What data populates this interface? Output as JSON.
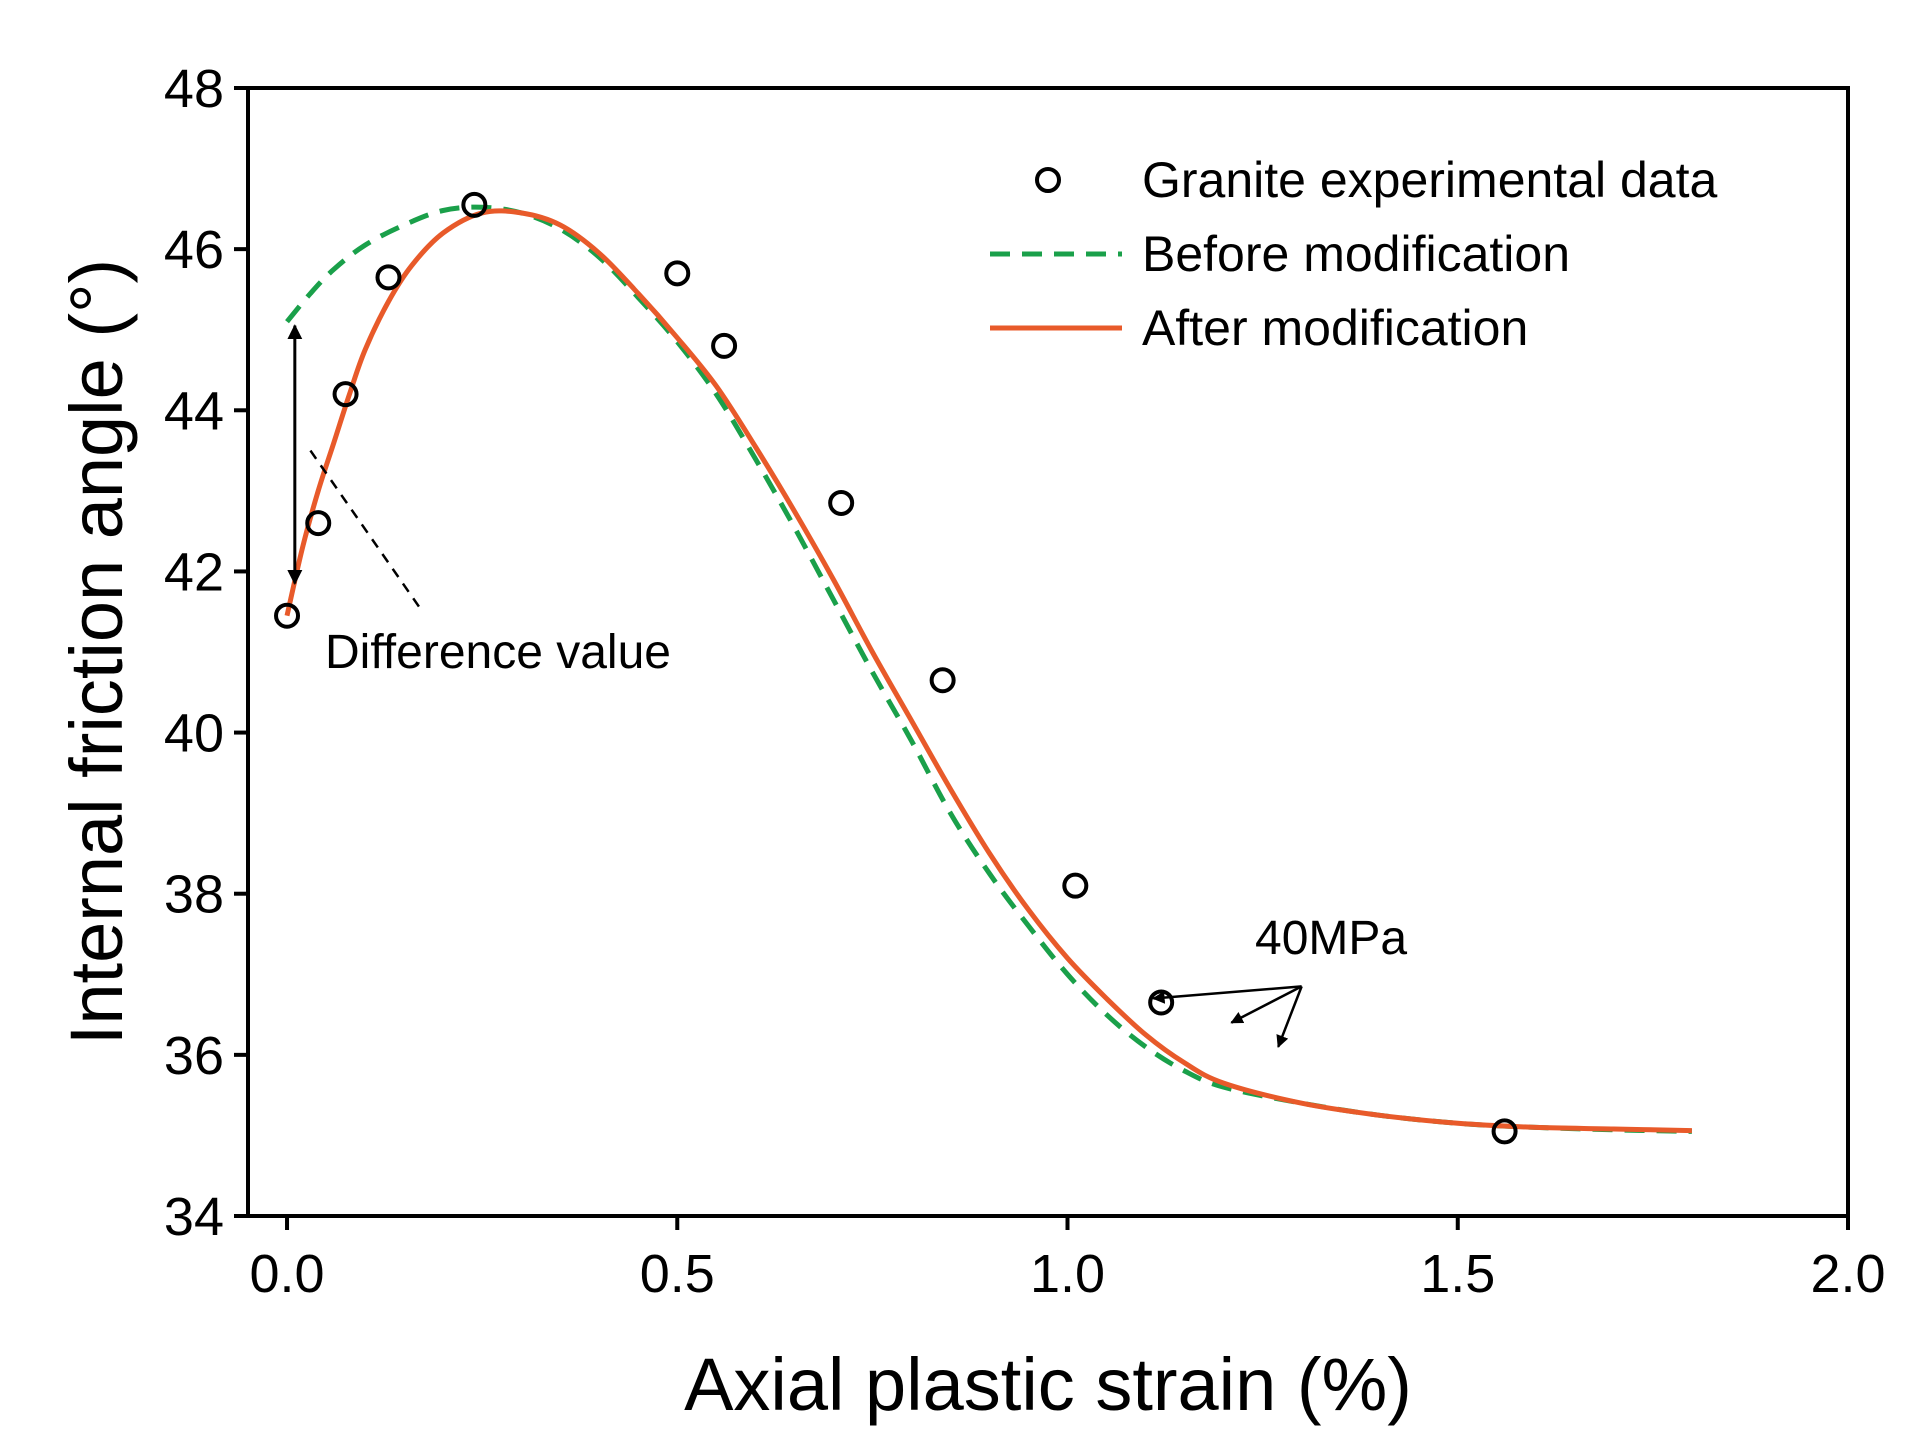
{
  "chart_data": {
    "type": "scatter",
    "title": "",
    "xlabel": "Axial plastic strain (%)",
    "ylabel": "Internal friction angle (°)",
    "xlim": [
      -0.05,
      2.0
    ],
    "ylim": [
      34,
      48
    ],
    "xticks": [
      0.0,
      0.5,
      1.0,
      1.5,
      2.0
    ],
    "xtick_labels": [
      "0.0",
      "0.5",
      "1.0",
      "1.5",
      "2.0"
    ],
    "yticks": [
      34,
      36,
      38,
      40,
      42,
      44,
      46,
      48
    ],
    "ytick_labels": [
      "34",
      "36",
      "38",
      "40",
      "42",
      "44",
      "46",
      "48"
    ],
    "grid": false,
    "legend_position": "top-right",
    "series": [
      {
        "name": "Granite experimental data",
        "kind": "scatter",
        "marker": "open-circle",
        "color": "#000000",
        "points": [
          [
            0.0,
            41.45
          ],
          [
            0.04,
            42.6
          ],
          [
            0.075,
            44.2
          ],
          [
            0.13,
            45.65
          ],
          [
            0.24,
            46.55
          ],
          [
            0.5,
            45.7
          ],
          [
            0.56,
            44.8
          ],
          [
            0.71,
            42.85
          ],
          [
            0.84,
            40.65
          ],
          [
            1.01,
            38.1
          ],
          [
            1.12,
            36.65
          ],
          [
            1.56,
            35.05
          ]
        ]
      },
      {
        "name": "Before modification",
        "kind": "line",
        "style": "dashed",
        "color": "#1aa04a",
        "points": [
          [
            0.0,
            45.1
          ],
          [
            0.03,
            45.45
          ],
          [
            0.06,
            45.75
          ],
          [
            0.1,
            46.05
          ],
          [
            0.15,
            46.3
          ],
          [
            0.2,
            46.48
          ],
          [
            0.25,
            46.52
          ],
          [
            0.3,
            46.45
          ],
          [
            0.35,
            46.25
          ],
          [
            0.4,
            45.9
          ],
          [
            0.45,
            45.4
          ],
          [
            0.5,
            44.85
          ],
          [
            0.55,
            44.2
          ],
          [
            0.6,
            43.4
          ],
          [
            0.65,
            42.55
          ],
          [
            0.7,
            41.65
          ],
          [
            0.75,
            40.75
          ],
          [
            0.8,
            39.9
          ],
          [
            0.85,
            39.0
          ],
          [
            0.9,
            38.25
          ],
          [
            0.95,
            37.6
          ],
          [
            1.0,
            37.0
          ],
          [
            1.05,
            36.5
          ],
          [
            1.1,
            36.1
          ],
          [
            1.15,
            35.8
          ],
          [
            1.2,
            35.6
          ],
          [
            1.3,
            35.4
          ],
          [
            1.4,
            35.25
          ],
          [
            1.5,
            35.15
          ],
          [
            1.6,
            35.1
          ],
          [
            1.7,
            35.07
          ],
          [
            1.8,
            35.05
          ]
        ]
      },
      {
        "name": "After modification",
        "kind": "line",
        "style": "solid",
        "color": "#e85a2a",
        "points": [
          [
            0.0,
            41.45
          ],
          [
            0.02,
            42.3
          ],
          [
            0.04,
            43.0
          ],
          [
            0.06,
            43.6
          ],
          [
            0.08,
            44.2
          ],
          [
            0.1,
            44.75
          ],
          [
            0.13,
            45.35
          ],
          [
            0.16,
            45.8
          ],
          [
            0.2,
            46.2
          ],
          [
            0.25,
            46.45
          ],
          [
            0.3,
            46.45
          ],
          [
            0.35,
            46.3
          ],
          [
            0.4,
            45.95
          ],
          [
            0.45,
            45.45
          ],
          [
            0.5,
            44.9
          ],
          [
            0.55,
            44.3
          ],
          [
            0.6,
            43.55
          ],
          [
            0.65,
            42.75
          ],
          [
            0.7,
            41.9
          ],
          [
            0.75,
            41.0
          ],
          [
            0.8,
            40.15
          ],
          [
            0.85,
            39.3
          ],
          [
            0.9,
            38.5
          ],
          [
            0.95,
            37.8
          ],
          [
            1.0,
            37.2
          ],
          [
            1.05,
            36.7
          ],
          [
            1.1,
            36.25
          ],
          [
            1.15,
            35.9
          ],
          [
            1.2,
            35.65
          ],
          [
            1.3,
            35.4
          ],
          [
            1.4,
            35.25
          ],
          [
            1.5,
            35.15
          ],
          [
            1.6,
            35.1
          ],
          [
            1.7,
            35.08
          ],
          [
            1.8,
            35.06
          ]
        ]
      }
    ],
    "annotations": [
      {
        "text": "Difference value",
        "type": "double-arrow",
        "arrow_from": [
          0.01,
          45.05
        ],
        "arrow_to": [
          0.01,
          41.85
        ],
        "leader_from": [
          0.03,
          43.5
        ],
        "leader_to": [
          0.17,
          41.55
        ]
      },
      {
        "text": "40MPa",
        "type": "arrows",
        "origin": [
          1.3,
          36.85
        ],
        "targets": [
          [
            1.11,
            36.7
          ],
          [
            1.21,
            36.4
          ],
          [
            1.27,
            36.1
          ]
        ]
      }
    ]
  }
}
